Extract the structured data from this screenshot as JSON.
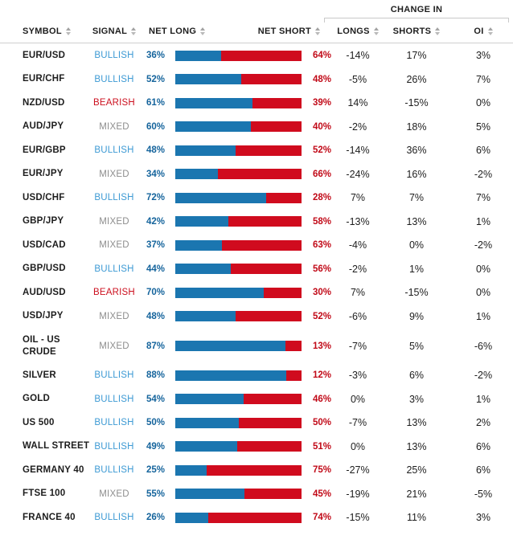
{
  "colors": {
    "bar_long": "#1b76b0",
    "bar_short": "#d00b1e",
    "bullish_text": "#3d9ad4",
    "bearish_text": "#cc101f",
    "mixed_text": "#8d8d8d",
    "net_long_text": "#15649c",
    "net_short_text": "#c10a18"
  },
  "table": {
    "group_header": "CHANGE IN",
    "columns": {
      "symbol": "SYMBOL",
      "signal": "SIGNAL",
      "net_long": "NET LONG",
      "net_short": "NET SHORT",
      "longs": "LONGS",
      "shorts": "SHORTS",
      "oi": "OI"
    },
    "rows": [
      {
        "symbol": "EUR/USD",
        "signal": "BULLISH",
        "net_long": 36,
        "net_short": 64,
        "longs": "-14%",
        "shorts": "17%",
        "oi": "3%"
      },
      {
        "symbol": "EUR/CHF",
        "signal": "BULLISH",
        "net_long": 52,
        "net_short": 48,
        "longs": "-5%",
        "shorts": "26%",
        "oi": "7%"
      },
      {
        "symbol": "NZD/USD",
        "signal": "BEARISH",
        "net_long": 61,
        "net_short": 39,
        "longs": "14%",
        "shorts": "-15%",
        "oi": "0%"
      },
      {
        "symbol": "AUD/JPY",
        "signal": "MIXED",
        "net_long": 60,
        "net_short": 40,
        "longs": "-2%",
        "shorts": "18%",
        "oi": "5%"
      },
      {
        "symbol": "EUR/GBP",
        "signal": "BULLISH",
        "net_long": 48,
        "net_short": 52,
        "longs": "-14%",
        "shorts": "36%",
        "oi": "6%"
      },
      {
        "symbol": "EUR/JPY",
        "signal": "MIXED",
        "net_long": 34,
        "net_short": 66,
        "longs": "-24%",
        "shorts": "16%",
        "oi": "-2%"
      },
      {
        "symbol": "USD/CHF",
        "signal": "BULLISH",
        "net_long": 72,
        "net_short": 28,
        "longs": "7%",
        "shorts": "7%",
        "oi": "7%"
      },
      {
        "symbol": "GBP/JPY",
        "signal": "MIXED",
        "net_long": 42,
        "net_short": 58,
        "longs": "-13%",
        "shorts": "13%",
        "oi": "1%"
      },
      {
        "symbol": "USD/CAD",
        "signal": "MIXED",
        "net_long": 37,
        "net_short": 63,
        "longs": "-4%",
        "shorts": "0%",
        "oi": "-2%"
      },
      {
        "symbol": "GBP/USD",
        "signal": "BULLISH",
        "net_long": 44,
        "net_short": 56,
        "longs": "-2%",
        "shorts": "1%",
        "oi": "0%"
      },
      {
        "symbol": "AUD/USD",
        "signal": "BEARISH",
        "net_long": 70,
        "net_short": 30,
        "longs": "7%",
        "shorts": "-15%",
        "oi": "0%"
      },
      {
        "symbol": "USD/JPY",
        "signal": "MIXED",
        "net_long": 48,
        "net_short": 52,
        "longs": "-6%",
        "shorts": "9%",
        "oi": "1%"
      },
      {
        "symbol": "OIL - US CRUDE",
        "signal": "MIXED",
        "net_long": 87,
        "net_short": 13,
        "longs": "-7%",
        "shorts": "5%",
        "oi": "-6%"
      },
      {
        "symbol": "SILVER",
        "signal": "BULLISH",
        "net_long": 88,
        "net_short": 12,
        "longs": "-3%",
        "shorts": "6%",
        "oi": "-2%"
      },
      {
        "symbol": "GOLD",
        "signal": "BULLISH",
        "net_long": 54,
        "net_short": 46,
        "longs": "0%",
        "shorts": "3%",
        "oi": "1%"
      },
      {
        "symbol": "US 500",
        "signal": "BULLISH",
        "net_long": 50,
        "net_short": 50,
        "longs": "-7%",
        "shorts": "13%",
        "oi": "2%"
      },
      {
        "symbol": "WALL STREET",
        "signal": "BULLISH",
        "net_long": 49,
        "net_short": 51,
        "longs": "0%",
        "shorts": "13%",
        "oi": "6%"
      },
      {
        "symbol": "GERMANY 40",
        "signal": "BULLISH",
        "net_long": 25,
        "net_short": 75,
        "longs": "-27%",
        "shorts": "25%",
        "oi": "6%"
      },
      {
        "symbol": "FTSE 100",
        "signal": "MIXED",
        "net_long": 55,
        "net_short": 45,
        "longs": "-19%",
        "shorts": "21%",
        "oi": "-5%"
      },
      {
        "symbol": "FRANCE 40",
        "signal": "BULLISH",
        "net_long": 26,
        "net_short": 74,
        "longs": "-15%",
        "shorts": "11%",
        "oi": "3%"
      }
    ]
  }
}
